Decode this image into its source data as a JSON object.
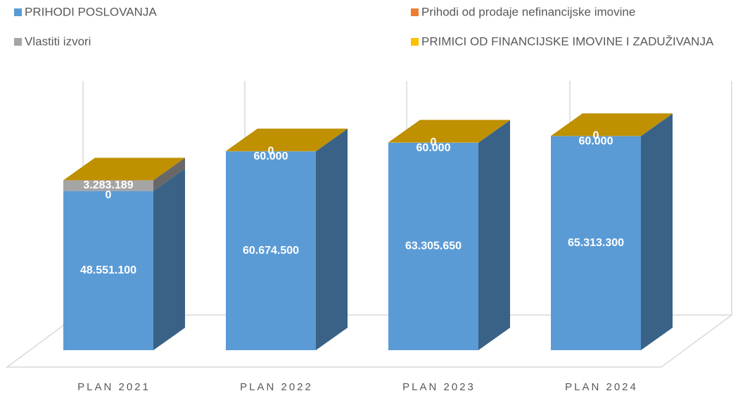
{
  "chart_data": {
    "type": "bar3d_stacked",
    "categories": [
      "PLAN 2021",
      "PLAN 2022",
      "PLAN 2023",
      "PLAN 2024"
    ],
    "series": [
      {
        "name": "PRIHODI POSLOVANJA",
        "color": "#5b9bd5",
        "values": [
          48551100,
          60674500,
          63305650,
          65313300
        ],
        "value_labels": [
          "48.551.100",
          "60.674.500",
          "63.305.650",
          "65.313.300"
        ]
      },
      {
        "name": "Prihodi od prodaje nefinancijske imovine",
        "color": "#ed7d31",
        "values": [
          0,
          0,
          0,
          0
        ],
        "value_labels": [
          "0",
          "0",
          "0",
          "0"
        ]
      },
      {
        "name": "Vlastiti izvori",
        "color": "#a5a5a5",
        "values": [
          3283189,
          null,
          null,
          null
        ],
        "value_labels": [
          "3.283.189",
          null,
          null,
          null
        ]
      },
      {
        "name": "PRIMICI OD FINANCIJSKE IMOVINE I ZADUŽIVANJA",
        "color": "#ffc000",
        "values": [
          0,
          60000,
          60000,
          60000
        ],
        "value_labels": [
          null,
          "60.000",
          "60.000",
          "60.000"
        ]
      }
    ],
    "ylim": [
      0,
      80000000
    ]
  }
}
